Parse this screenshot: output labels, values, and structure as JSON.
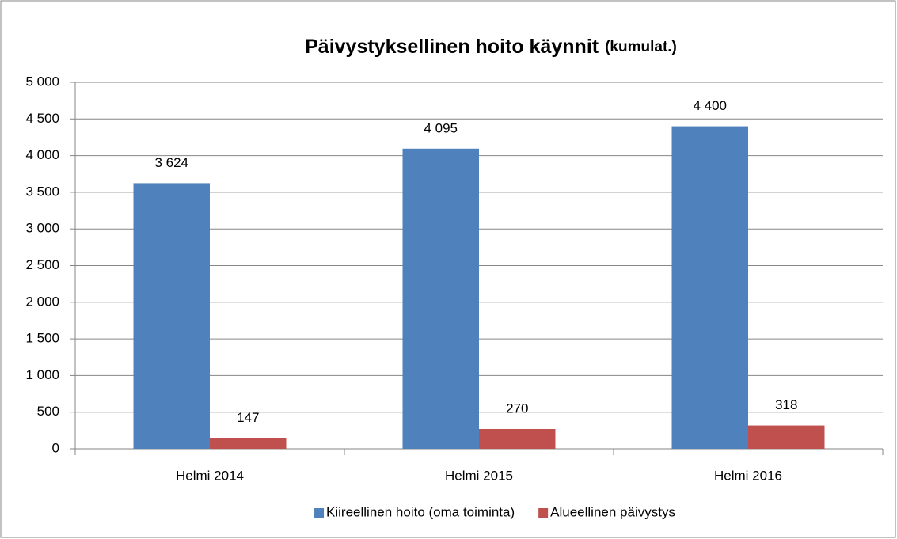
{
  "chart_data": {
    "type": "bar",
    "title": "Päivystyksellinen hoito käynnit",
    "title_note": "(kumulat.)",
    "categories": [
      "Helmi 2014",
      "Helmi 2015",
      "Helmi 2016"
    ],
    "series": [
      {
        "name": "Kiireellinen hoito (oma toiminta)",
        "color": "#4f81bd",
        "values": [
          3624,
          4095,
          4400
        ],
        "value_labels": [
          "3 624",
          "4 095",
          "4 400"
        ]
      },
      {
        "name": "Alueellinen päivystys",
        "color": "#c0504d",
        "values": [
          147,
          270,
          318
        ]
      }
    ],
    "ylim": [
      0,
      5000
    ],
    "yticks": [
      0,
      500,
      {
        "value": 1000,
        "label": "1 000"
      },
      {
        "value": 1500,
        "label": "1 500"
      },
      {
        "value": 2000,
        "label": "2 000"
      },
      {
        "value": 2500,
        "label": "2 500"
      },
      {
        "value": 3000,
        "label": "3 000"
      },
      {
        "value": 3500,
        "label": "3 500"
      },
      {
        "value": 4000,
        "label": "4 000"
      },
      {
        "value": 4500,
        "label": "4 500"
      },
      {
        "value": 5000,
        "label": "5 000"
      }
    ],
    "grid": true,
    "legend": "bottom"
  }
}
